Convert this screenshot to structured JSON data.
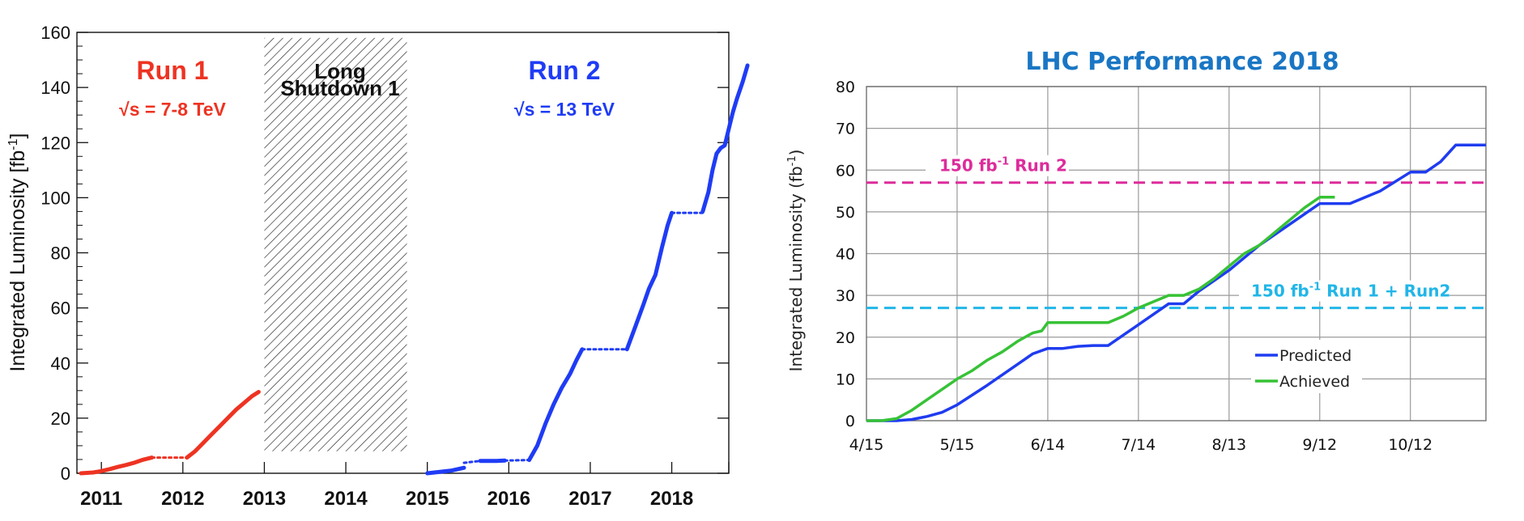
{
  "colors": {
    "run1": "#ee3322",
    "run2": "#1f3cf5",
    "predicted": "#1f3cf0",
    "achieved": "#37c236",
    "ref150run2": "#dd2c9c",
    "ref150run1run2": "#21b6e8",
    "title": "#1a76c4"
  },
  "chart_data": [
    {
      "type": "line",
      "title": "",
      "xlabel": "",
      "ylabel": "Integrated Luminosity [fb",
      "ylabel_sup": "-1",
      "ylabel_close": "]",
      "xlim": [
        2010.7,
        2018.7
      ],
      "ylim": [
        0,
        160
      ],
      "yticks": [
        0,
        20,
        40,
        60,
        80,
        100,
        120,
        140,
        160
      ],
      "xtick_labels": [
        "2011",
        "2012",
        "2013",
        "2014",
        "2015",
        "2016",
        "2017",
        "2018"
      ],
      "grid": false,
      "shaded_region": {
        "x": [
          2013.0,
          2014.75
        ],
        "y": [
          8,
          158
        ],
        "label_line1": "Long",
        "label_line2": "Shutdown 1"
      },
      "annotations": {
        "run1_title": "Run 1",
        "run1_energy": "√s = 7-8 TeV",
        "run2_title": "Run 2",
        "run2_energy": "√s = 13 TeV"
      },
      "series": [
        {
          "color_key": "run1",
          "segments": [
            {
              "style": "solid",
              "x": [
                2010.75,
                2010.9,
                2011.0,
                2011.1,
                2011.2,
                2011.3,
                2011.4,
                2011.5,
                2011.62
              ],
              "y": [
                0,
                0.3,
                0.8,
                1.5,
                2.3,
                3.0,
                3.8,
                4.8,
                5.7
              ]
            },
            {
              "style": "dotted",
              "x": [
                2011.62,
                2012.05
              ],
              "y": [
                5.7,
                5.7
              ]
            },
            {
              "style": "solid",
              "x": [
                2012.05,
                2012.15,
                2012.25,
                2012.35,
                2012.45,
                2012.55,
                2012.65,
                2012.75,
                2012.85,
                2012.93
              ],
              "y": [
                5.7,
                8,
                11,
                14,
                17,
                20,
                23,
                25.5,
                28,
                29.5
              ]
            }
          ]
        },
        {
          "color_key": "run2",
          "segments": [
            {
              "style": "solid",
              "x": [
                2015.0,
                2015.3,
                2015.45
              ],
              "y": [
                0,
                1.0,
                2.0
              ]
            },
            {
              "style": "dotted",
              "x": [
                2015.45,
                2015.65
              ],
              "y": [
                3.8,
                4.5
              ]
            },
            {
              "style": "solid",
              "x": [
                2015.65,
                2015.85,
                2015.95
              ],
              "y": [
                4.5,
                4.5,
                4.6
              ]
            },
            {
              "style": "dotted",
              "x": [
                2015.95,
                2016.25
              ],
              "y": [
                4.6,
                4.8
              ]
            },
            {
              "style": "solid",
              "x": [
                2016.25,
                2016.35,
                2016.45,
                2016.55,
                2016.65,
                2016.75,
                2016.83,
                2016.9
              ],
              "y": [
                4.8,
                10,
                18,
                25,
                31,
                36,
                41,
                45
              ]
            },
            {
              "style": "dotted",
              "x": [
                2016.9,
                2017.45
              ],
              "y": [
                45,
                45
              ]
            },
            {
              "style": "solid",
              "x": [
                2017.45,
                2017.55,
                2017.65,
                2017.72,
                2017.8,
                2017.88,
                2017.95,
                2018.0
              ],
              "y": [
                45,
                53,
                61,
                67,
                72,
                82,
                90,
                94.5
              ]
            },
            {
              "style": "dotted",
              "x": [
                2018.0,
                2018.38
              ],
              "y": [
                94.5,
                94.5
              ]
            },
            {
              "style": "solid",
              "x": [
                2018.38,
                2018.45,
                2018.5,
                2018.55,
                2018.6,
                2018.65,
                2018.7,
                2018.75,
                2018.8,
                2018.87,
                2018.93
              ],
              "y": [
                95,
                102,
                110,
                116,
                118,
                119,
                125,
                131,
                136,
                142,
                148
              ]
            }
          ]
        }
      ]
    },
    {
      "type": "line",
      "title": "LHC Performance 2018",
      "xlabel": "",
      "ylabel": "Integrated Luminosity (fb",
      "ylabel_sup": "-1",
      "ylabel_close": ")",
      "xlim": [
        0,
        205
      ],
      "ylim": [
        0,
        80
      ],
      "xtick_pos": [
        0,
        30,
        60,
        90,
        120,
        150,
        180
      ],
      "xtick_labels": [
        "4/15",
        "5/15",
        "6/14",
        "7/14",
        "8/13",
        "9/12",
        "10/12"
      ],
      "yticks": [
        0,
        10,
        20,
        30,
        40,
        50,
        60,
        70,
        80
      ],
      "grid": true,
      "legend": "lower-right",
      "reference_lines": [
        {
          "y": 57,
          "color_key": "ref150run2",
          "label_main": "150 fb",
          "label_sup": "-1",
          "label_tail": " Run 2"
        },
        {
          "y": 27,
          "color_key": "ref150run1run2",
          "label_main": "150 fb",
          "label_sup": "-1",
          "label_tail": " Run 1 + Run2"
        }
      ],
      "series": [
        {
          "name": "Predicted",
          "color_key": "predicted",
          "x": [
            0,
            10,
            15,
            20,
            25,
            30,
            40,
            50,
            55,
            60,
            65,
            70,
            75,
            80,
            90,
            100,
            105,
            110,
            120,
            130,
            140,
            150,
            160,
            170,
            180,
            185,
            190,
            195,
            205
          ],
          "y": [
            0,
            0,
            0.3,
            1.0,
            2.0,
            3.8,
            8.5,
            13.5,
            16,
            17.3,
            17.3,
            17.8,
            18,
            18,
            23,
            28,
            28,
            31,
            36,
            42,
            47,
            52,
            52,
            55,
            59.5,
            59.5,
            62,
            66,
            66
          ]
        },
        {
          "name": "Achieved",
          "color_key": "achieved",
          "x": [
            0,
            5,
            10,
            15,
            20,
            25,
            30,
            35,
            40,
            45,
            50,
            55,
            58,
            60,
            65,
            70,
            75,
            80,
            85,
            90,
            95,
            100,
            105,
            110,
            115,
            120,
            125,
            130,
            135,
            140,
            145,
            150,
            155
          ],
          "y": [
            0,
            0,
            0.5,
            2.5,
            5,
            7.5,
            10,
            12,
            14.5,
            16.5,
            19,
            21,
            21.5,
            23.5,
            23.5,
            23.5,
            23.5,
            23.5,
            25,
            27,
            28.5,
            30,
            30,
            31.5,
            34,
            37,
            40,
            42,
            45,
            48,
            51,
            53.5,
            53.5
          ]
        }
      ]
    }
  ]
}
